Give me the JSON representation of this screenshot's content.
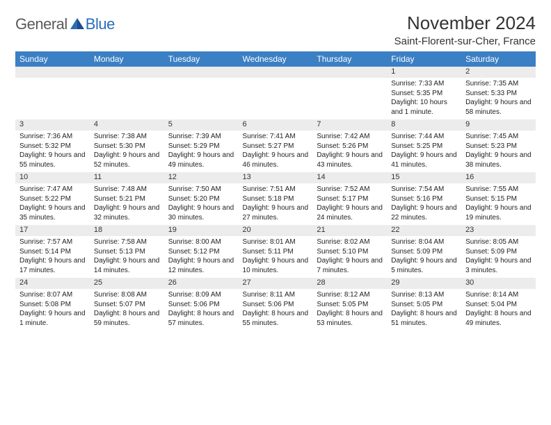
{
  "logo": {
    "general": "General",
    "blue": "Blue"
  },
  "title": "November 2024",
  "location": "Saint-Florent-sur-Cher, France",
  "colors": {
    "header_bg": "#3b7fc4",
    "header_fg": "#ffffff",
    "daynum_bg": "#ececec",
    "text": "#333333",
    "logo_gray": "#5a5a5a",
    "logo_blue": "#2a6db8"
  },
  "weekdays": [
    "Sunday",
    "Monday",
    "Tuesday",
    "Wednesday",
    "Thursday",
    "Friday",
    "Saturday"
  ],
  "weeks": [
    [
      null,
      null,
      null,
      null,
      null,
      {
        "d": "1",
        "sr": "Sunrise: 7:33 AM",
        "ss": "Sunset: 5:35 PM",
        "dl": "Daylight: 10 hours and 1 minute."
      },
      {
        "d": "2",
        "sr": "Sunrise: 7:35 AM",
        "ss": "Sunset: 5:33 PM",
        "dl": "Daylight: 9 hours and 58 minutes."
      }
    ],
    [
      {
        "d": "3",
        "sr": "Sunrise: 7:36 AM",
        "ss": "Sunset: 5:32 PM",
        "dl": "Daylight: 9 hours and 55 minutes."
      },
      {
        "d": "4",
        "sr": "Sunrise: 7:38 AM",
        "ss": "Sunset: 5:30 PM",
        "dl": "Daylight: 9 hours and 52 minutes."
      },
      {
        "d": "5",
        "sr": "Sunrise: 7:39 AM",
        "ss": "Sunset: 5:29 PM",
        "dl": "Daylight: 9 hours and 49 minutes."
      },
      {
        "d": "6",
        "sr": "Sunrise: 7:41 AM",
        "ss": "Sunset: 5:27 PM",
        "dl": "Daylight: 9 hours and 46 minutes."
      },
      {
        "d": "7",
        "sr": "Sunrise: 7:42 AM",
        "ss": "Sunset: 5:26 PM",
        "dl": "Daylight: 9 hours and 43 minutes."
      },
      {
        "d": "8",
        "sr": "Sunrise: 7:44 AM",
        "ss": "Sunset: 5:25 PM",
        "dl": "Daylight: 9 hours and 41 minutes."
      },
      {
        "d": "9",
        "sr": "Sunrise: 7:45 AM",
        "ss": "Sunset: 5:23 PM",
        "dl": "Daylight: 9 hours and 38 minutes."
      }
    ],
    [
      {
        "d": "10",
        "sr": "Sunrise: 7:47 AM",
        "ss": "Sunset: 5:22 PM",
        "dl": "Daylight: 9 hours and 35 minutes."
      },
      {
        "d": "11",
        "sr": "Sunrise: 7:48 AM",
        "ss": "Sunset: 5:21 PM",
        "dl": "Daylight: 9 hours and 32 minutes."
      },
      {
        "d": "12",
        "sr": "Sunrise: 7:50 AM",
        "ss": "Sunset: 5:20 PM",
        "dl": "Daylight: 9 hours and 30 minutes."
      },
      {
        "d": "13",
        "sr": "Sunrise: 7:51 AM",
        "ss": "Sunset: 5:18 PM",
        "dl": "Daylight: 9 hours and 27 minutes."
      },
      {
        "d": "14",
        "sr": "Sunrise: 7:52 AM",
        "ss": "Sunset: 5:17 PM",
        "dl": "Daylight: 9 hours and 24 minutes."
      },
      {
        "d": "15",
        "sr": "Sunrise: 7:54 AM",
        "ss": "Sunset: 5:16 PM",
        "dl": "Daylight: 9 hours and 22 minutes."
      },
      {
        "d": "16",
        "sr": "Sunrise: 7:55 AM",
        "ss": "Sunset: 5:15 PM",
        "dl": "Daylight: 9 hours and 19 minutes."
      }
    ],
    [
      {
        "d": "17",
        "sr": "Sunrise: 7:57 AM",
        "ss": "Sunset: 5:14 PM",
        "dl": "Daylight: 9 hours and 17 minutes."
      },
      {
        "d": "18",
        "sr": "Sunrise: 7:58 AM",
        "ss": "Sunset: 5:13 PM",
        "dl": "Daylight: 9 hours and 14 minutes."
      },
      {
        "d": "19",
        "sr": "Sunrise: 8:00 AM",
        "ss": "Sunset: 5:12 PM",
        "dl": "Daylight: 9 hours and 12 minutes."
      },
      {
        "d": "20",
        "sr": "Sunrise: 8:01 AM",
        "ss": "Sunset: 5:11 PM",
        "dl": "Daylight: 9 hours and 10 minutes."
      },
      {
        "d": "21",
        "sr": "Sunrise: 8:02 AM",
        "ss": "Sunset: 5:10 PM",
        "dl": "Daylight: 9 hours and 7 minutes."
      },
      {
        "d": "22",
        "sr": "Sunrise: 8:04 AM",
        "ss": "Sunset: 5:09 PM",
        "dl": "Daylight: 9 hours and 5 minutes."
      },
      {
        "d": "23",
        "sr": "Sunrise: 8:05 AM",
        "ss": "Sunset: 5:09 PM",
        "dl": "Daylight: 9 hours and 3 minutes."
      }
    ],
    [
      {
        "d": "24",
        "sr": "Sunrise: 8:07 AM",
        "ss": "Sunset: 5:08 PM",
        "dl": "Daylight: 9 hours and 1 minute."
      },
      {
        "d": "25",
        "sr": "Sunrise: 8:08 AM",
        "ss": "Sunset: 5:07 PM",
        "dl": "Daylight: 8 hours and 59 minutes."
      },
      {
        "d": "26",
        "sr": "Sunrise: 8:09 AM",
        "ss": "Sunset: 5:06 PM",
        "dl": "Daylight: 8 hours and 57 minutes."
      },
      {
        "d": "27",
        "sr": "Sunrise: 8:11 AM",
        "ss": "Sunset: 5:06 PM",
        "dl": "Daylight: 8 hours and 55 minutes."
      },
      {
        "d": "28",
        "sr": "Sunrise: 8:12 AM",
        "ss": "Sunset: 5:05 PM",
        "dl": "Daylight: 8 hours and 53 minutes."
      },
      {
        "d": "29",
        "sr": "Sunrise: 8:13 AM",
        "ss": "Sunset: 5:05 PM",
        "dl": "Daylight: 8 hours and 51 minutes."
      },
      {
        "d": "30",
        "sr": "Sunrise: 8:14 AM",
        "ss": "Sunset: 5:04 PM",
        "dl": "Daylight: 8 hours and 49 minutes."
      }
    ]
  ]
}
